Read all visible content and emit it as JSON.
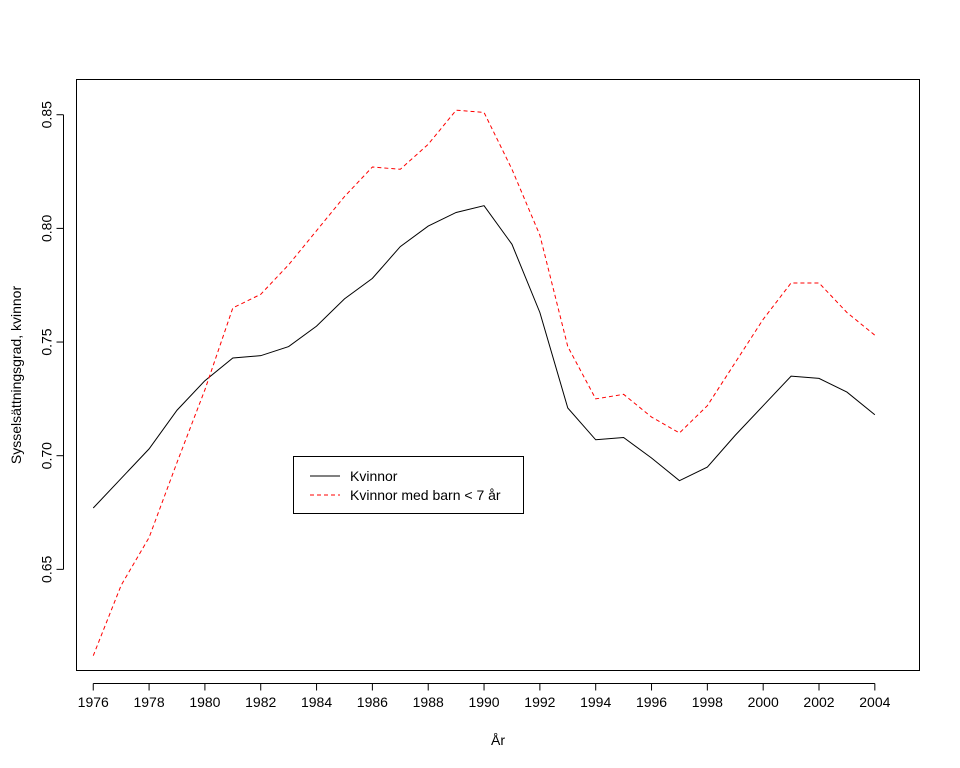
{
  "chart_data": {
    "type": "line",
    "title": "",
    "xlabel": "År",
    "ylabel": "Sysselsättningsgrad, kvinnor",
    "xlim": [
      1975.4,
      2005.6
    ],
    "ylim": [
      0.6055,
      0.8655
    ],
    "x_ticks": [
      "1976",
      "1978",
      "1980",
      "1982",
      "1984",
      "1986",
      "1988",
      "1990",
      "1992",
      "1994",
      "1996",
      "1998",
      "2000",
      "2002",
      "2004"
    ],
    "y_ticks": [
      "0.65",
      "0.70",
      "0.75",
      "0.80",
      "0.85"
    ],
    "grid": false,
    "legend_position": "center-left",
    "x": [
      1976,
      1977,
      1978,
      1979,
      1980,
      1981,
      1982,
      1983,
      1984,
      1985,
      1986,
      1987,
      1988,
      1989,
      1990,
      1991,
      1992,
      1993,
      1994,
      1995,
      1996,
      1997,
      1998,
      1999,
      2000,
      2001,
      2002,
      2003,
      2004
    ],
    "series": [
      {
        "name": "Kvinnor",
        "color": "#000000",
        "dash": "solid",
        "values": [
          0.677,
          0.69,
          0.703,
          0.72,
          0.733,
          0.743,
          0.744,
          0.748,
          0.757,
          0.769,
          0.778,
          0.792,
          0.801,
          0.807,
          0.81,
          0.793,
          0.763,
          0.721,
          0.707,
          0.708,
          0.699,
          0.689,
          0.695,
          0.709,
          0.722,
          0.735,
          0.734,
          0.728,
          0.718
        ]
      },
      {
        "name": "Kvinnor med barn < 7 år",
        "color": "#ff0000",
        "dash": "dashed",
        "values": [
          0.612,
          0.643,
          0.664,
          0.697,
          0.729,
          0.765,
          0.771,
          0.784,
          0.799,
          0.814,
          0.827,
          0.826,
          0.837,
          0.852,
          0.851,
          0.826,
          0.797,
          0.748,
          0.725,
          0.727,
          0.717,
          0.71,
          0.722,
          0.741,
          0.76,
          0.776,
          0.776,
          0.763,
          0.753
        ]
      }
    ]
  }
}
